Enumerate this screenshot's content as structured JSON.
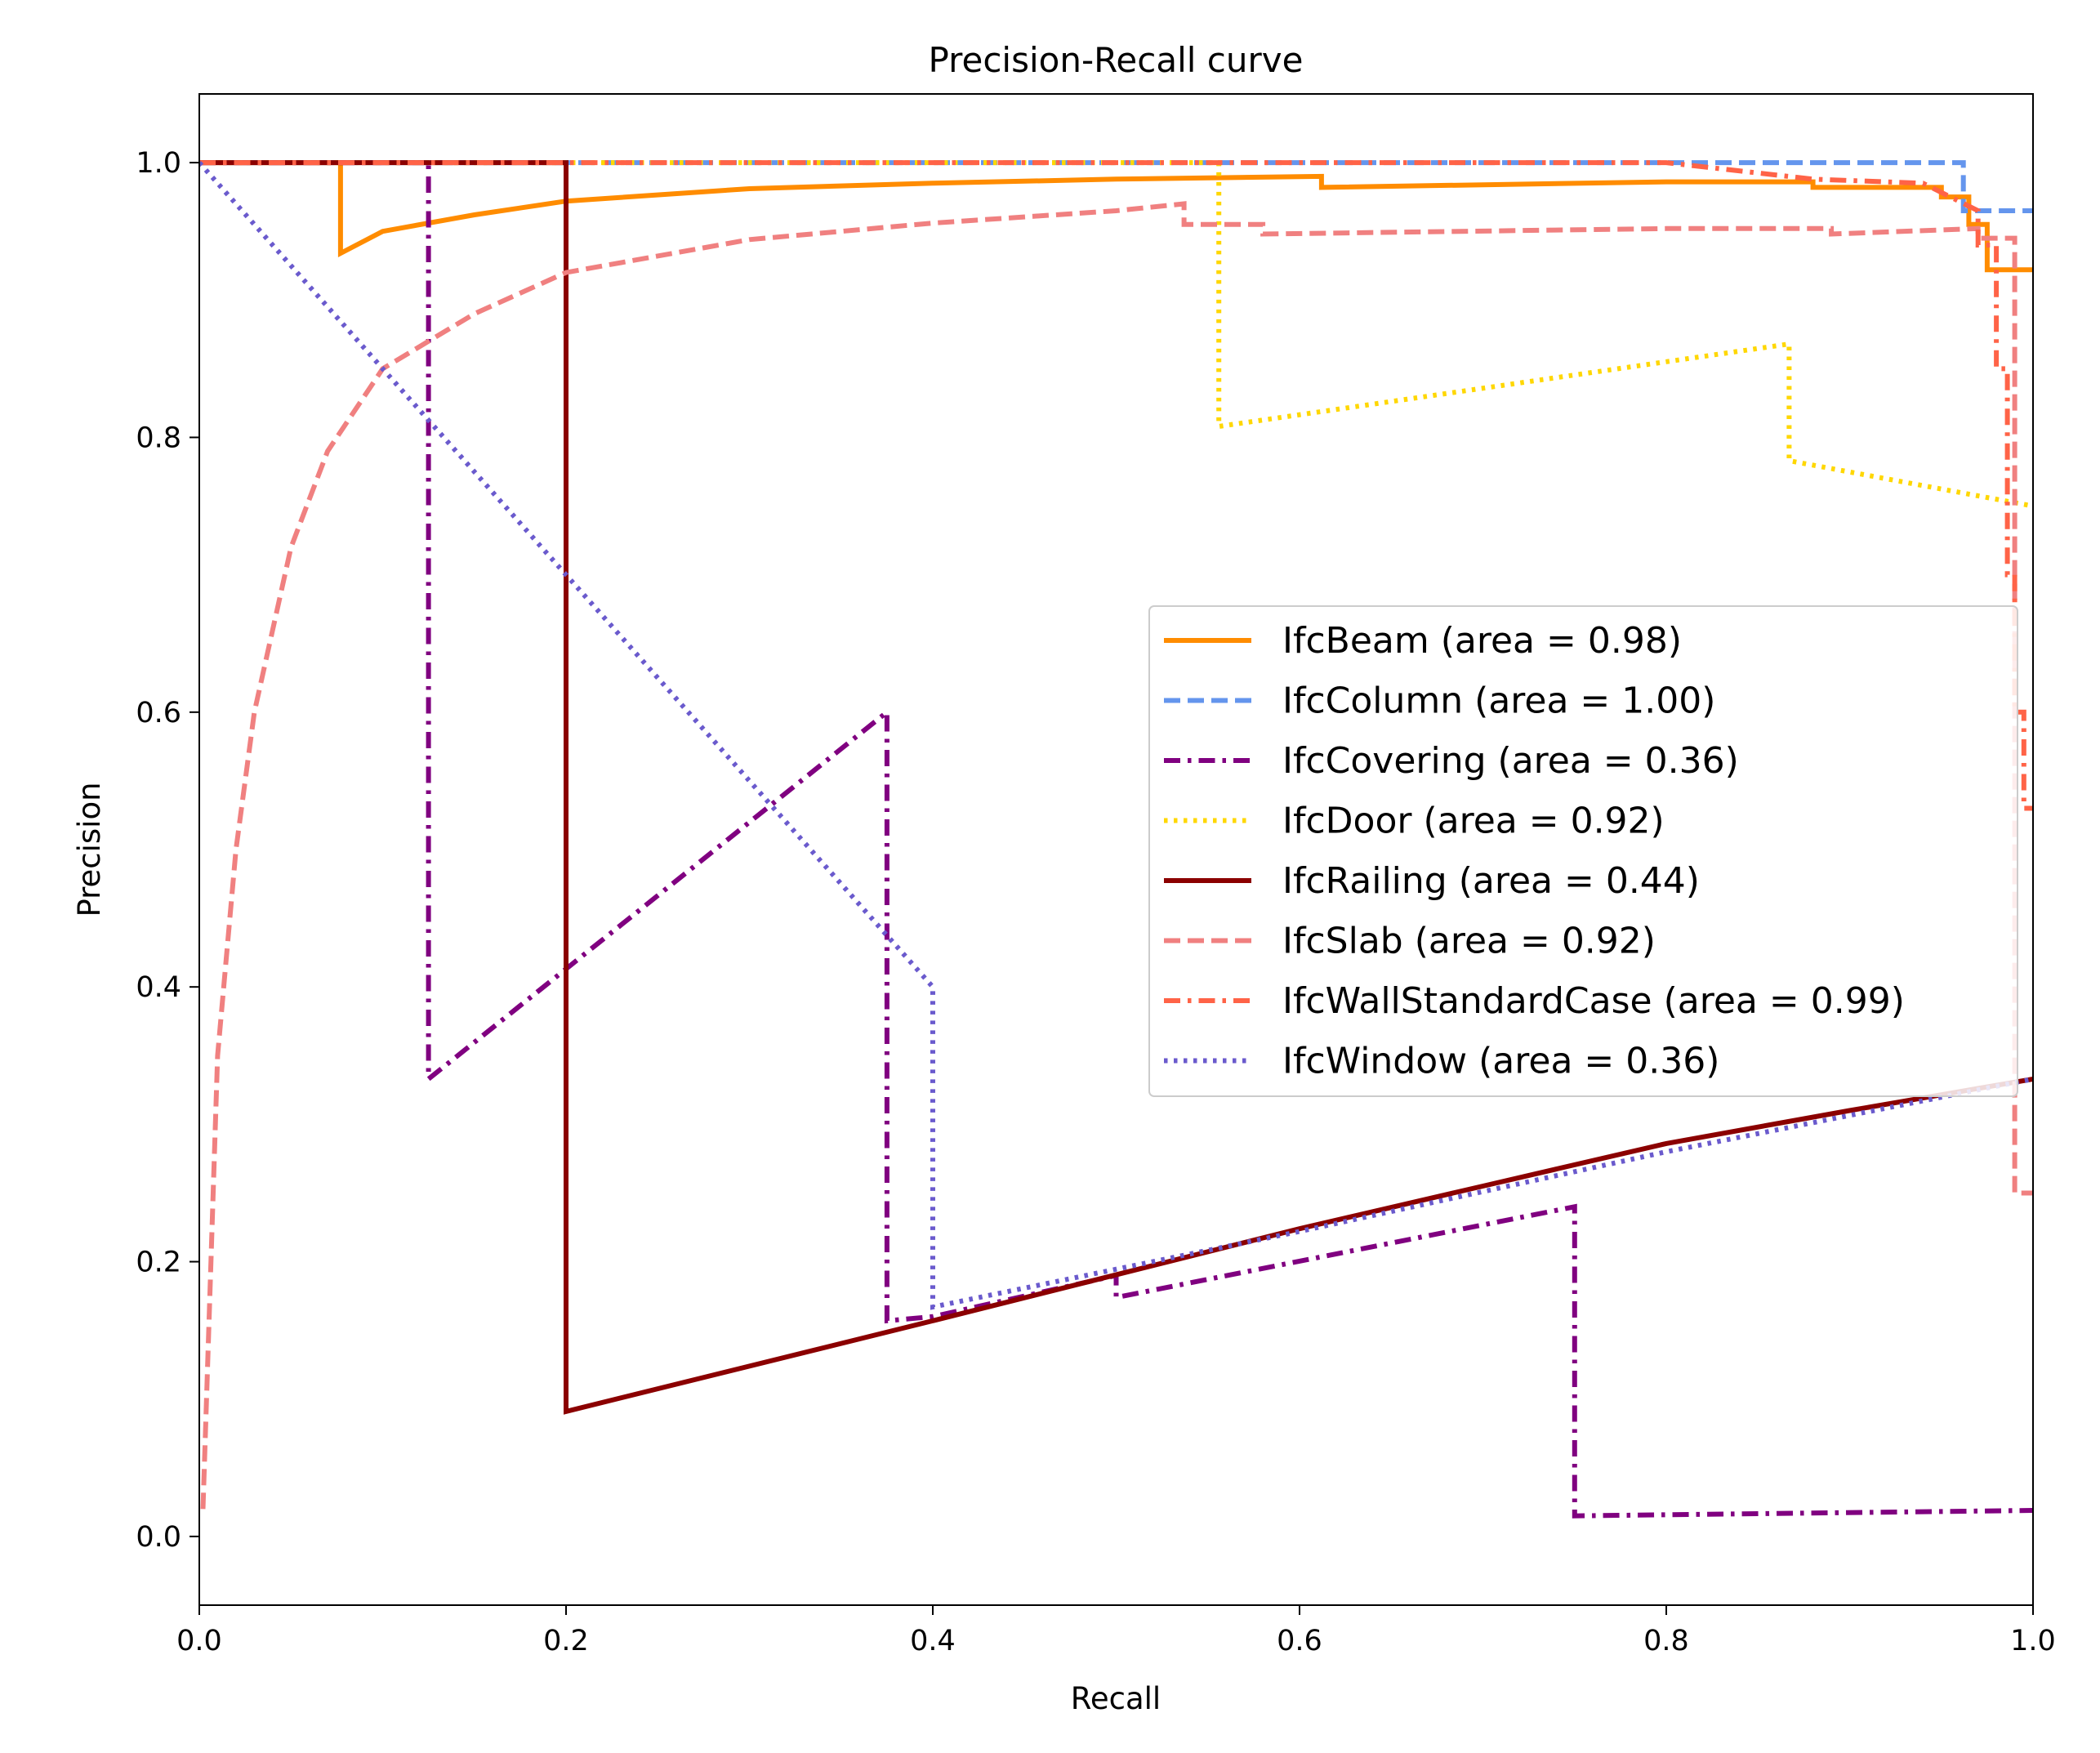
{
  "chart_data": {
    "type": "line",
    "title": "Precision-Recall curve",
    "xlabel": "Recall",
    "ylabel": "Precision",
    "xlim": [
      0.0,
      1.0
    ],
    "ylim": [
      -0.05,
      1.05
    ],
    "xticks": [
      0.0,
      0.2,
      0.4,
      0.6,
      0.8,
      1.0
    ],
    "xtick_labels": [
      "0.0",
      "0.2",
      "0.4",
      "0.6",
      "0.8",
      "1.0"
    ],
    "yticks": [
      0.0,
      0.2,
      0.4,
      0.6,
      0.8,
      1.0
    ],
    "ytick_labels": [
      "0.0",
      "0.2",
      "0.4",
      "0.6",
      "0.8",
      "1.0"
    ],
    "grid": false,
    "legend_position": "center-right",
    "series": [
      {
        "name": "IfcBeam (area = 0.98)",
        "color": "#ff8c00",
        "dash": "solid",
        "points": [
          [
            0.0,
            1.0
          ],
          [
            0.077,
            1.0
          ],
          [
            0.077,
            0.934
          ],
          [
            0.1,
            0.95
          ],
          [
            0.15,
            0.962
          ],
          [
            0.2,
            0.972
          ],
          [
            0.3,
            0.981
          ],
          [
            0.4,
            0.985
          ],
          [
            0.5,
            0.988
          ],
          [
            0.612,
            0.99
          ],
          [
            0.612,
            0.982
          ],
          [
            0.8,
            0.986
          ],
          [
            0.88,
            0.986
          ],
          [
            0.88,
            0.982
          ],
          [
            0.95,
            0.982
          ],
          [
            0.95,
            0.975
          ],
          [
            0.965,
            0.975
          ],
          [
            0.965,
            0.955
          ],
          [
            0.975,
            0.955
          ],
          [
            0.975,
            0.922
          ],
          [
            1.0,
            0.922
          ]
        ]
      },
      {
        "name": "IfcColumn (area = 1.00)",
        "color": "#6495ed",
        "dash": "dashed",
        "points": [
          [
            0.0,
            1.0
          ],
          [
            0.962,
            1.0
          ],
          [
            0.962,
            0.965
          ],
          [
            1.0,
            0.965
          ]
        ]
      },
      {
        "name": "IfcCovering (area = 0.36)",
        "color": "#800080",
        "dash": "dashdot",
        "points": [
          [
            0.0,
            1.0
          ],
          [
            0.125,
            1.0
          ],
          [
            0.125,
            0.333
          ],
          [
            0.375,
            0.6
          ],
          [
            0.375,
            0.157
          ],
          [
            0.4,
            0.16
          ],
          [
            0.5,
            0.19
          ],
          [
            0.5,
            0.174
          ],
          [
            0.75,
            0.24
          ],
          [
            0.75,
            0.015
          ],
          [
            1.0,
            0.019
          ]
        ]
      },
      {
        "name": "IfcDoor (area = 0.92)",
        "color": "#ffd700",
        "dash": "dotted",
        "points": [
          [
            0.0,
            1.0
          ],
          [
            0.556,
            1.0
          ],
          [
            0.556,
            0.808
          ],
          [
            0.867,
            0.868
          ],
          [
            0.867,
            0.783
          ],
          [
            1.0,
            0.75
          ]
        ]
      },
      {
        "name": "IfcRailing (area = 0.44)",
        "color": "#8b0000",
        "dash": "solid",
        "points": [
          [
            0.0,
            1.0
          ],
          [
            0.2,
            1.0
          ],
          [
            0.2,
            0.091
          ],
          [
            0.4,
            0.157
          ],
          [
            0.6,
            0.224
          ],
          [
            0.7,
            0.255
          ],
          [
            0.8,
            0.286
          ],
          [
            0.9,
            0.31
          ],
          [
            1.0,
            0.333
          ]
        ]
      },
      {
        "name": "IfcSlab (area = 0.92)",
        "color": "#f08080",
        "dash": "dashed",
        "points": [
          [
            0.002,
            0.02
          ],
          [
            0.01,
            0.35
          ],
          [
            0.02,
            0.5
          ],
          [
            0.03,
            0.6
          ],
          [
            0.05,
            0.72
          ],
          [
            0.07,
            0.79
          ],
          [
            0.1,
            0.85
          ],
          [
            0.15,
            0.89
          ],
          [
            0.2,
            0.92
          ],
          [
            0.3,
            0.944
          ],
          [
            0.4,
            0.956
          ],
          [
            0.5,
            0.965
          ],
          [
            0.537,
            0.97
          ],
          [
            0.537,
            0.955
          ],
          [
            0.58,
            0.955
          ],
          [
            0.58,
            0.948
          ],
          [
            0.8,
            0.952
          ],
          [
            0.89,
            0.952
          ],
          [
            0.89,
            0.948
          ],
          [
            0.97,
            0.952
          ],
          [
            0.97,
            0.945
          ],
          [
            0.99,
            0.945
          ],
          [
            0.99,
            0.25
          ],
          [
            1.0,
            0.25
          ]
        ]
      },
      {
        "name": "IfcWallStandardCase (area = 0.99)",
        "color": "#ff6347",
        "dash": "dashdot",
        "points": [
          [
            0.0,
            1.0
          ],
          [
            0.8,
            1.0
          ],
          [
            0.88,
            0.988
          ],
          [
            0.94,
            0.985
          ],
          [
            0.97,
            0.965
          ],
          [
            0.97,
            0.94
          ],
          [
            0.98,
            0.94
          ],
          [
            0.98,
            0.85
          ],
          [
            0.986,
            0.85
          ],
          [
            0.986,
            0.7
          ],
          [
            0.99,
            0.7
          ],
          [
            0.99,
            0.6
          ],
          [
            0.995,
            0.6
          ],
          [
            0.995,
            0.53
          ],
          [
            1.0,
            0.53
          ]
        ]
      },
      {
        "name": "IfcWindow (area = 0.36)",
        "color": "#6a5acd",
        "dash": "dotted",
        "points": [
          [
            0.0,
            1.0
          ],
          [
            0.4,
            0.4
          ],
          [
            0.4,
            0.167
          ],
          [
            0.6,
            0.222
          ],
          [
            0.8,
            0.28
          ],
          [
            1.0,
            0.333
          ]
        ]
      }
    ]
  }
}
